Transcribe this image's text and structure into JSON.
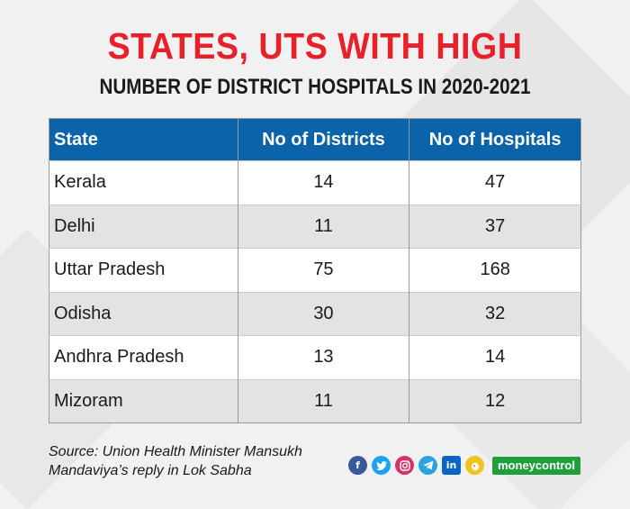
{
  "title": "STATES, UTS WITH HIGH",
  "subtitle": "NUMBER OF DISTRICT HOSPITALS IN 2020-2021",
  "chart_data": {
    "type": "table",
    "title": "STATES, UTS WITH HIGH NUMBER OF DISTRICT HOSPITALS IN 2020-2021",
    "columns": [
      "State",
      "No of Districts",
      "No of Hospitals"
    ],
    "rows": [
      [
        "Kerala",
        "14",
        "47"
      ],
      [
        "Delhi",
        "11",
        "37"
      ],
      [
        "Uttar Pradesh",
        "75",
        "168"
      ],
      [
        "Odisha",
        "30",
        "32"
      ],
      [
        "Andhra Pradesh",
        "13",
        "14"
      ],
      [
        "Mizoram",
        "11",
        "12"
      ]
    ]
  },
  "source": {
    "line1": "Source: Union Health Minister Mansukh",
    "line2": "Mandaviya’s reply in Lok Sabha"
  },
  "footer": {
    "icons": [
      "facebook-icon",
      "twitter-icon",
      "instagram-icon",
      "telegram-icon",
      "linkedin-icon",
      "koo-icon"
    ],
    "brand": "moneycontrol"
  },
  "colors": {
    "title": "#e8202a",
    "header_bg": "#0b63a9",
    "row_alt": "#e3e3e3",
    "brand": "#1e9f3c"
  }
}
